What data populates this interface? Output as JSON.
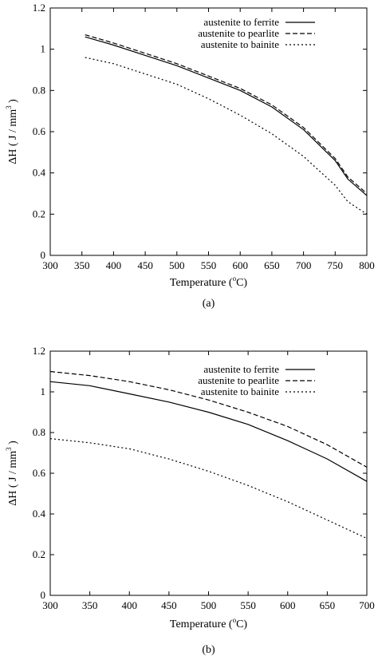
{
  "chart_data": [
    {
      "type": "line",
      "caption": "(a)",
      "xlabel": "Temperature (",
      "xlabel_sup": "o",
      "xlabel_unit": "C)",
      "ylabel": "ΔH ( J / mm",
      "ylabel_sup": "3",
      "ylabel_end": " )",
      "xlim": [
        300,
        800
      ],
      "ylim": [
        0,
        1.2
      ],
      "xticks": [
        "300",
        "350",
        "400",
        "450",
        "500",
        "550",
        "600",
        "650",
        "700",
        "750",
        "800"
      ],
      "yticks": [
        "0",
        "0.2",
        "0.4",
        "0.6",
        "0.8",
        "1",
        "1.2"
      ],
      "legend_position": "top-right",
      "grid": false,
      "series": [
        {
          "name": "austenite to ferrite",
          "style": "solid",
          "x": [
            355,
            400,
            450,
            500,
            550,
            600,
            650,
            700,
            750,
            770,
            800
          ],
          "y": [
            1.06,
            1.02,
            0.97,
            0.92,
            0.86,
            0.8,
            0.72,
            0.61,
            0.46,
            0.37,
            0.29
          ]
        },
        {
          "name": "austenite to pearlite",
          "style": "dashed",
          "x": [
            355,
            400,
            450,
            500,
            550,
            600,
            650,
            700,
            750,
            770,
            800
          ],
          "y": [
            1.07,
            1.03,
            0.98,
            0.93,
            0.87,
            0.81,
            0.73,
            0.62,
            0.47,
            0.38,
            0.3
          ]
        },
        {
          "name": "austenite to bainite",
          "style": "dotted",
          "x": [
            355,
            400,
            450,
            500,
            550,
            600,
            650,
            700,
            750,
            770,
            800
          ],
          "y": [
            0.96,
            0.93,
            0.88,
            0.83,
            0.76,
            0.68,
            0.59,
            0.48,
            0.34,
            0.26,
            0.2
          ]
        }
      ]
    },
    {
      "type": "line",
      "caption": "(b)",
      "xlabel": "Temperature (",
      "xlabel_sup": "o",
      "xlabel_unit": "C)",
      "ylabel": "ΔH ( J / mm",
      "ylabel_sup": "3",
      "ylabel_end": " )",
      "xlim": [
        300,
        700
      ],
      "ylim": [
        0,
        1.2
      ],
      "xticks": [
        "300",
        "350",
        "400",
        "450",
        "500",
        "550",
        "600",
        "650",
        "700"
      ],
      "yticks": [
        "0",
        "0.2",
        "0.4",
        "0.6",
        "0.8",
        "1",
        "1.2"
      ],
      "legend_position": "top-right",
      "grid": false,
      "series": [
        {
          "name": "austenite to ferrite",
          "style": "solid",
          "x": [
            300,
            350,
            400,
            450,
            500,
            550,
            600,
            650,
            700
          ],
          "y": [
            1.05,
            1.03,
            0.99,
            0.95,
            0.9,
            0.84,
            0.76,
            0.67,
            0.56
          ]
        },
        {
          "name": "austenite to pearlite",
          "style": "dashed",
          "x": [
            300,
            350,
            400,
            450,
            500,
            550,
            600,
            650,
            700
          ],
          "y": [
            1.1,
            1.08,
            1.05,
            1.01,
            0.96,
            0.9,
            0.83,
            0.74,
            0.63
          ]
        },
        {
          "name": "austenite to bainite",
          "style": "dotted",
          "x": [
            300,
            350,
            400,
            450,
            500,
            550,
            600,
            650,
            700
          ],
          "y": [
            0.77,
            0.75,
            0.72,
            0.67,
            0.61,
            0.54,
            0.46,
            0.37,
            0.28
          ]
        }
      ]
    }
  ]
}
